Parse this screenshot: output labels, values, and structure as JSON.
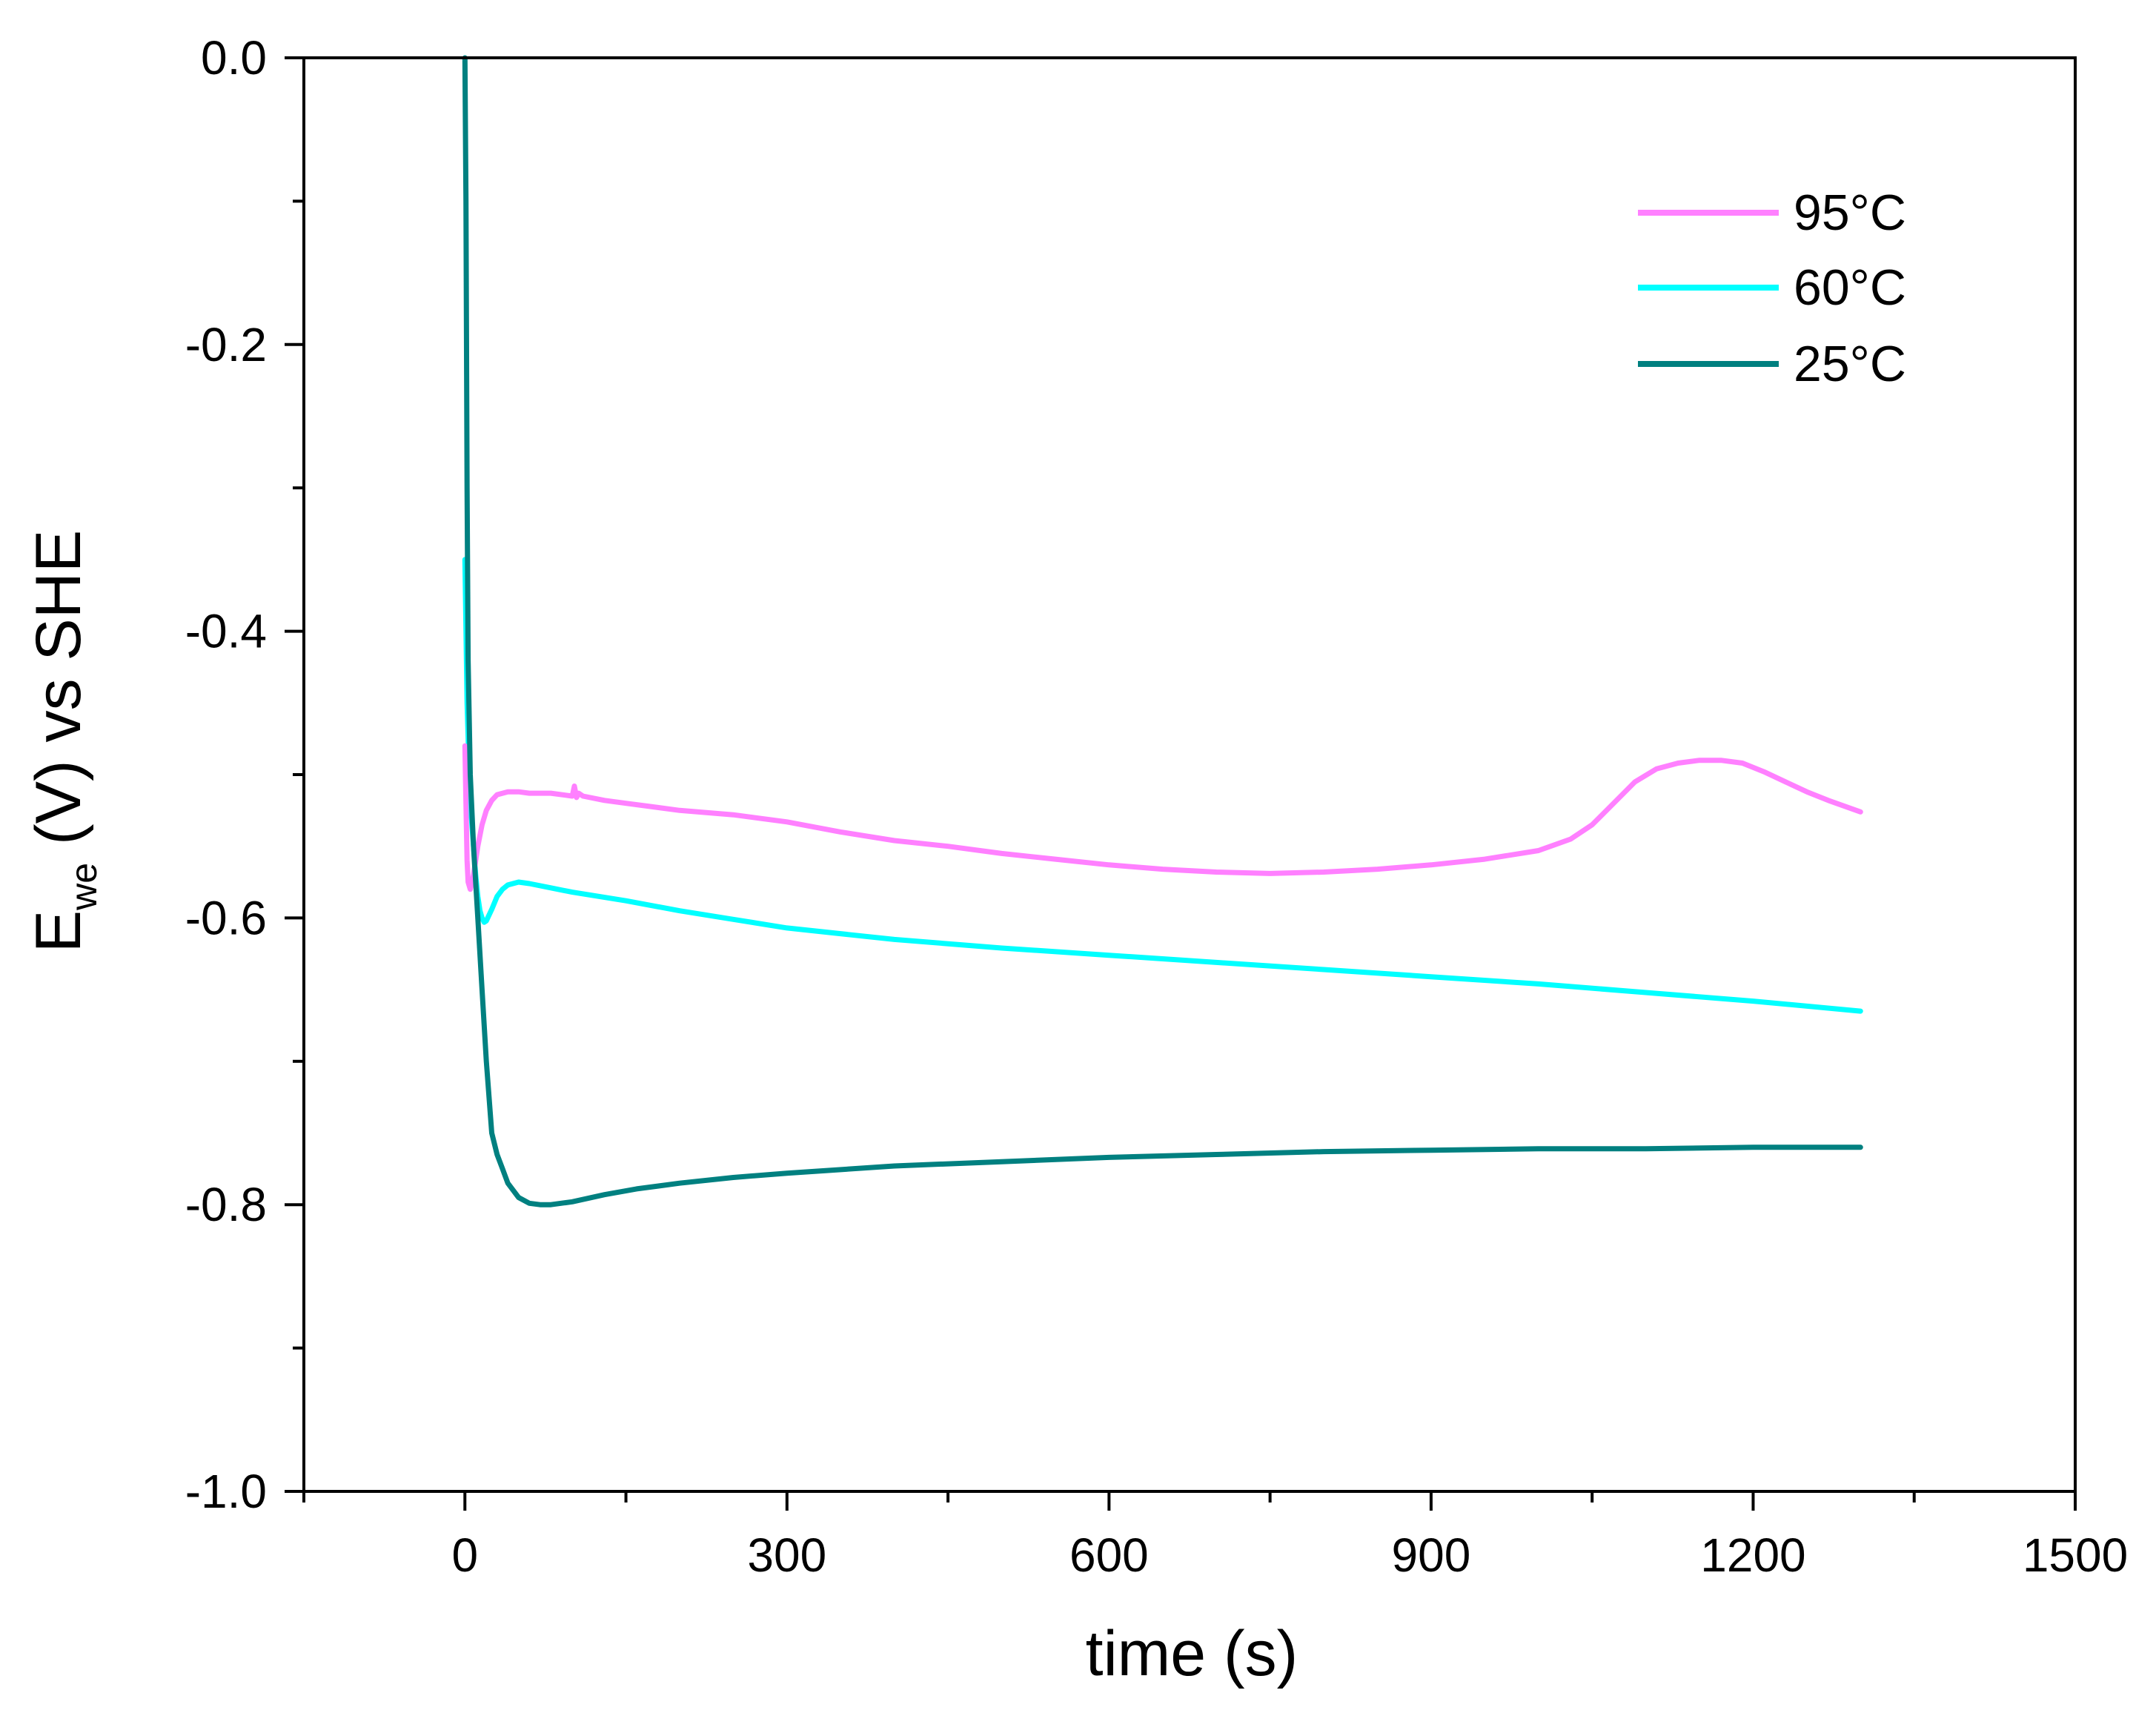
{
  "chart_data": {
    "type": "line",
    "title": "",
    "xlabel": "time (s)",
    "ylabel": {
      "main": "E",
      "subscript": "we",
      "rest": " (V) vs SHE"
    },
    "xlim": [
      -150,
      1500
    ],
    "ylim": [
      -1.0,
      0.0
    ],
    "x_major_ticks": [
      0,
      300,
      600,
      900,
      1200,
      1500
    ],
    "x_tick_labels": [
      "0",
      "300",
      "600",
      "900",
      "1200",
      "1500"
    ],
    "x_minor_step": 150,
    "y_major_ticks": [
      0.0,
      -0.2,
      -0.4,
      -0.6,
      -0.8,
      -1.0
    ],
    "y_tick_labels": [
      "0.0",
      "-0.2",
      "-0.4",
      "-0.6",
      "-0.8",
      "-1.0"
    ],
    "y_minor_step": 0.1,
    "grid": false,
    "legend_position": "top-right",
    "series": [
      {
        "name": "95°C",
        "color": "#ff80ff",
        "x": [
          0,
          1,
          2,
          3,
          5,
          8,
          12,
          16,
          20,
          25,
          30,
          40,
          50,
          60,
          80,
          100,
          102,
          104,
          106,
          110,
          130,
          150,
          170,
          200,
          250,
          300,
          350,
          400,
          450,
          500,
          550,
          600,
          650,
          700,
          750,
          800,
          850,
          900,
          950,
          1000,
          1030,
          1050,
          1070,
          1090,
          1110,
          1130,
          1150,
          1170,
          1190,
          1210,
          1230,
          1250,
          1270,
          1300
        ],
        "y": [
          -0.48,
          -0.52,
          -0.56,
          -0.575,
          -0.58,
          -0.57,
          -0.55,
          -0.535,
          -0.525,
          -0.518,
          -0.514,
          -0.512,
          -0.512,
          -0.513,
          -0.513,
          -0.515,
          -0.508,
          -0.516,
          -0.513,
          -0.515,
          -0.518,
          -0.52,
          -0.522,
          -0.525,
          -0.528,
          -0.533,
          -0.54,
          -0.546,
          -0.55,
          -0.555,
          -0.559,
          -0.563,
          -0.566,
          -0.568,
          -0.569,
          -0.568,
          -0.566,
          -0.563,
          -0.559,
          -0.553,
          -0.545,
          -0.535,
          -0.52,
          -0.505,
          -0.496,
          -0.492,
          -0.49,
          -0.49,
          -0.492,
          -0.498,
          -0.505,
          -0.512,
          -0.518,
          -0.526
        ]
      },
      {
        "name": "60°C",
        "color": "#00ffff",
        "x": [
          0,
          2,
          4,
          6,
          8,
          10,
          12,
          14,
          16,
          18,
          20,
          25,
          30,
          35,
          40,
          50,
          60,
          80,
          100,
          150,
          200,
          250,
          300,
          400,
          500,
          600,
          700,
          800,
          900,
          1000,
          1100,
          1200,
          1300
        ],
        "y": [
          -0.35,
          -0.45,
          -0.5,
          -0.53,
          -0.55,
          -0.57,
          -0.585,
          -0.595,
          -0.6,
          -0.603,
          -0.602,
          -0.594,
          -0.585,
          -0.58,
          -0.577,
          -0.575,
          -0.576,
          -0.579,
          -0.582,
          -0.588,
          -0.595,
          -0.601,
          -0.607,
          -0.615,
          -0.621,
          -0.626,
          -0.631,
          -0.636,
          -0.641,
          -0.646,
          -0.652,
          -0.658,
          -0.665
        ]
      },
      {
        "name": "25°C",
        "color": "#008080",
        "x": [
          0,
          1,
          2,
          3,
          5,
          8,
          12,
          16,
          20,
          25,
          30,
          35,
          40,
          50,
          60,
          70,
          80,
          100,
          130,
          160,
          200,
          250,
          300,
          400,
          500,
          600,
          700,
          800,
          900,
          1000,
          1100,
          1200,
          1300
        ],
        "y": [
          0.0,
          -0.1,
          -0.3,
          -0.42,
          -0.5,
          -0.55,
          -0.6,
          -0.65,
          -0.7,
          -0.75,
          -0.765,
          -0.775,
          -0.785,
          -0.795,
          -0.799,
          -0.8,
          -0.8,
          -0.798,
          -0.793,
          -0.789,
          -0.785,
          -0.781,
          -0.778,
          -0.773,
          -0.77,
          -0.767,
          -0.765,
          -0.763,
          -0.762,
          -0.761,
          -0.761,
          -0.76,
          -0.76
        ]
      }
    ]
  }
}
